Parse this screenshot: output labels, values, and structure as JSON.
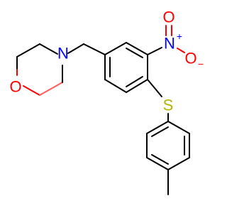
{
  "atoms": [
    {
      "label": "O"
    },
    {
      "label": "N"
    },
    {
      "label": "N",
      "charge": "+"
    },
    {
      "label": "O"
    },
    {
      "label": "O",
      "charge": "−"
    },
    {
      "label": "S"
    }
  ]
}
